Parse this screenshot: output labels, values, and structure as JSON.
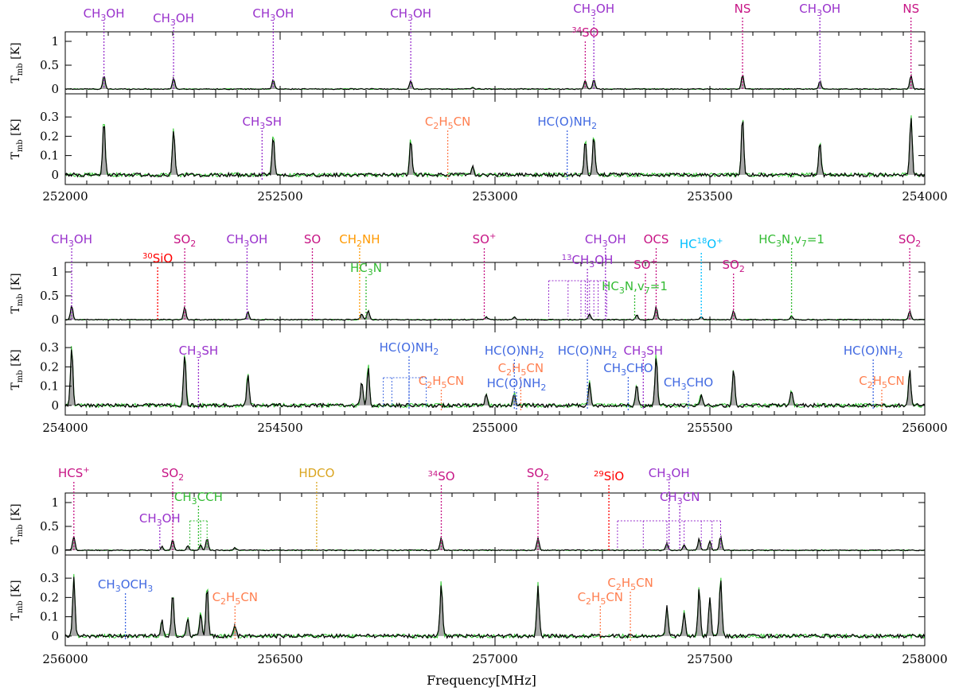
{
  "chart_data": {
    "type": "line",
    "xlabel": "Frequency[MHz]",
    "ylabel": "T_mb [K]",
    "series_styles": {
      "observed": {
        "color": "#000000",
        "fill": "#a9a9a9"
      },
      "model": {
        "color": "#33cc33"
      }
    },
    "colors": {
      "CH3OH": "#9932cc",
      "CH3SH": "#9932cc",
      "NS": "#c71585",
      "SO": "#c71585",
      "34SO": "#c71585",
      "SO2": "#c71585",
      "SO+": "#c71585",
      "OCS": "#c71585",
      "HCS+": "#c71585",
      "SiO": "#ff0000",
      "CH2NH": "#ff9900",
      "HDCO": "#daa520",
      "HC3N": "#33bb33",
      "CH3CCH": "#33bb33",
      "C2H5CN": "#ff7f50",
      "HC(O)NH2": "#4169e1",
      "CH3CHO": "#4169e1",
      "CH3OCH3": "#4169e1",
      "HC18O+": "#00bfff"
    },
    "rows": [
      {
        "xlim": [
          252000,
          254000
        ],
        "xticks": [
          "252000",
          "252500",
          "253000",
          "253500",
          "254000"
        ],
        "top_yticks": [
          "0",
          "0.5",
          "1"
        ],
        "top_ylim": [
          -0.1,
          1.2
        ],
        "bottom_yticks": [
          "0",
          "0.1",
          "0.2",
          "0.3"
        ],
        "bottom_ylim": [
          -0.05,
          0.42
        ],
        "peaks": [
          {
            "x": 252090,
            "h": 0.28
          },
          {
            "x": 252252,
            "h": 0.24
          },
          {
            "x": 252484,
            "h": 0.2
          },
          {
            "x": 252804,
            "h": 0.18
          },
          {
            "x": 252948,
            "h": 0.04
          },
          {
            "x": 253210,
            "h": 0.18
          },
          {
            "x": 253230,
            "h": 0.2
          },
          {
            "x": 253576,
            "h": 0.3
          },
          {
            "x": 253756,
            "h": 0.17
          },
          {
            "x": 253968,
            "h": 0.3
          }
        ],
        "top_labels": [
          {
            "text": "CH3OH",
            "html": "CH<tspan font-size='11' dy='4'>3</tspan><tspan dy='-4'>OH</tspan>",
            "x": 252090,
            "color": "#9932cc",
            "ty": 22
          },
          {
            "text": "CH3OH",
            "html": "CH<tspan font-size='11' dy='4'>3</tspan><tspan dy='-4'>OH</tspan>",
            "x": 252252,
            "color": "#9932cc",
            "ty": 28
          },
          {
            "text": "CH3OH",
            "html": "CH<tspan font-size='11' dy='4'>3</tspan><tspan dy='-4'>OH</tspan>",
            "x": 252484,
            "color": "#9932cc",
            "ty": 22
          },
          {
            "text": "CH3OH",
            "html": "CH<tspan font-size='11' dy='4'>3</tspan><tspan dy='-4'>OH</tspan>",
            "x": 252804,
            "color": "#9932cc",
            "ty": 22
          },
          {
            "text": "CH3OH",
            "html": "CH<tspan font-size='11' dy='4'>3</tspan><tspan dy='-4'>OH</tspan>",
            "x": 253230,
            "color": "#9932cc",
            "ty": 16
          },
          {
            "text": "34SO",
            "html": "<tspan font-size='10' dy='-5'>34</tspan><tspan dy='5'>SO</tspan>",
            "x": 253210,
            "color": "#c71585",
            "ty": 46
          },
          {
            "text": "NS",
            "html": "NS",
            "x": 253576,
            "color": "#c71585",
            "ty": 16
          },
          {
            "text": "CH3OH",
            "html": "CH<tspan font-size='11' dy='4'>3</tspan><tspan dy='-4'>OH</tspan>",
            "x": 253756,
            "color": "#9932cc",
            "ty": 16
          },
          {
            "text": "NS",
            "html": "NS",
            "x": 253968,
            "color": "#c71585",
            "ty": 16
          }
        ],
        "bottom_labels": [
          {
            "text": "CH3SH",
            "html": "CH<tspan font-size='11' dy='4'>3</tspan><tspan dy='-4'>SH</tspan>",
            "x": 252458,
            "color": "#9932cc",
            "ty": 158
          },
          {
            "text": "C2H5CN",
            "html": "C<tspan font-size='11' dy='4'>2</tspan><tspan dy='-4'>H</tspan><tspan font-size='11' dy='4'>5</tspan><tspan dy='-4'>CN</tspan>",
            "x": 252890,
            "color": "#ff7f50",
            "ty": 158
          },
          {
            "text": "HC(O)NH2",
            "html": "HC(O)NH<tspan font-size='11' dy='4'>2</tspan>",
            "x": 253168,
            "color": "#4169e1",
            "ty": 158
          }
        ]
      },
      {
        "xlim": [
          254000,
          256000
        ],
        "xticks": [
          "254000",
          "254500",
          "255000",
          "255500",
          "256000"
        ],
        "top_yticks": [
          "0",
          "0.5",
          "1"
        ],
        "top_ylim": [
          -0.1,
          1.2
        ],
        "bottom_yticks": [
          "0",
          "0.1",
          "0.2",
          "0.3"
        ],
        "bottom_ylim": [
          -0.05,
          0.42
        ],
        "peaks": [
          {
            "x": 254015,
            "h": 0.3
          },
          {
            "x": 254278,
            "h": 0.27
          },
          {
            "x": 254425,
            "h": 0.16
          },
          {
            "x": 254690,
            "h": 0.12
          },
          {
            "x": 254705,
            "h": 0.2
          },
          {
            "x": 254980,
            "h": 0.06
          },
          {
            "x": 255045,
            "h": 0.06
          },
          {
            "x": 255220,
            "h": 0.12
          },
          {
            "x": 255330,
            "h": 0.1
          },
          {
            "x": 255375,
            "h": 0.26
          },
          {
            "x": 255480,
            "h": 0.06
          },
          {
            "x": 255555,
            "h": 0.19
          },
          {
            "x": 255690,
            "h": 0.08
          },
          {
            "x": 255965,
            "h": 0.18
          }
        ],
        "top_labels": [
          {
            "text": "CH3OH",
            "html": "CH<tspan font-size='11' dy='4'>3</tspan><tspan dy='-4'>OH</tspan>",
            "x": 254015,
            "color": "#9932cc",
            "ty": 306
          },
          {
            "text": "30SiO",
            "html": "<tspan font-size='10' dy='-5'>30</tspan><tspan dy='5'>SiO</tspan>",
            "x": 254215,
            "color": "#ff0000",
            "ty": 330
          },
          {
            "text": "SO2",
            "html": "SO<tspan font-size='11' dy='4'>2</tspan>",
            "x": 254278,
            "color": "#c71585",
            "ty": 306
          },
          {
            "text": "CH3OH",
            "html": "CH<tspan font-size='11' dy='4'>3</tspan><tspan dy='-4'>OH</tspan>",
            "x": 254423,
            "color": "#9932cc",
            "ty": 306
          },
          {
            "text": "SO",
            "html": "SO",
            "x": 254575,
            "color": "#c71585",
            "ty": 306
          },
          {
            "text": "CH2NH",
            "html": "CH<tspan font-size='11' dy='4'>2</tspan><tspan dy='-4'>NH</tspan>",
            "x": 254685,
            "color": "#ff9900",
            "ty": 306
          },
          {
            "text": "HC3N",
            "html": "HC<tspan font-size='11' dy='4'>3</tspan><tspan dy='-4'>N</tspan>",
            "x": 254700,
            "color": "#33bb33",
            "ty": 342
          },
          {
            "text": "SO+",
            "html": "SO<tspan font-size='10' dy='-6'>+</tspan>",
            "x": 254975,
            "color": "#c71585",
            "ty": 306
          },
          {
            "text": "13CH3OH",
            "html": "<tspan font-size='10' dy='-5'>13</tspan><tspan dy='5'>CH</tspan><tspan font-size='11' dy='4'>3</tspan><tspan dy='-4'>OH</tspan>",
            "x": 255215,
            "color": "#9932cc",
            "ty": 332
          },
          {
            "text": "CH3OH",
            "html": "CH<tspan font-size='11' dy='4'>3</tspan><tspan dy='-4'>OH</tspan>",
            "x": 255257,
            "color": "#9932cc",
            "ty": 306
          },
          {
            "text": "OCS",
            "html": "OCS",
            "x": 255375,
            "color": "#c71585",
            "ty": 306
          },
          {
            "text": "SO+",
            "html": "SO<tspan font-size='10' dy='-6'>+</tspan>",
            "x": 255350,
            "color": "#c71585",
            "ty": 338
          },
          {
            "text": "HC3N,v7=1",
            "html": "HC<tspan font-size='11' dy='4'>3</tspan><tspan dy='-4'>N,v</tspan><tspan font-size='11' dy='4'>7</tspan><tspan dy='-4'>=1</tspan>",
            "x": 255325,
            "color": "#33bb33",
            "ty": 365
          },
          {
            "text": "HC18O+",
            "html": "HC<tspan font-size='10' dy='-6'>18</tspan><tspan dy='6'>O</tspan><tspan font-size='10' dy='-6'>+</tspan>",
            "x": 255480,
            "color": "#00bfff",
            "ty": 312
          },
          {
            "text": "SO2",
            "html": "SO<tspan font-size='11' dy='4'>2</tspan>",
            "x": 255555,
            "color": "#c71585",
            "ty": 338
          },
          {
            "text": "HC3N,v7=1",
            "html": "HC<tspan font-size='11' dy='4'>3</tspan><tspan dy='-4'>N,v</tspan><tspan font-size='11' dy='4'>7</tspan><tspan dy='-4'>=1</tspan>",
            "x": 255690,
            "color": "#33bb33",
            "ty": 306
          },
          {
            "text": "SO2",
            "html": "SO<tspan font-size='11' dy='4'>2</tspan>",
            "x": 255965,
            "color": "#c71585",
            "ty": 306
          }
        ],
        "bottom_labels": [
          {
            "text": "CH3SH",
            "html": "CH<tspan font-size='11' dy='4'>3</tspan><tspan dy='-4'>SH</tspan>",
            "x": 254310,
            "color": "#9932cc",
            "ty": 446
          },
          {
            "text": "HC(O)NH2",
            "html": "HC(O)NH<tspan font-size='11' dy='4'>2</tspan>",
            "x": 254800,
            "color": "#4169e1",
            "ty": 442
          },
          {
            "text": "C2H5CN",
            "html": "C<tspan font-size='11' dy='4'>2</tspan><tspan dy='-4'>H</tspan><tspan font-size='11' dy='4'>5</tspan><tspan dy='-4'>CN</tspan>",
            "x": 255060,
            "color": "#ff7f50",
            "ty": 468
          },
          {
            "text": "C2H5CN",
            "html": "C<tspan font-size='11' dy='4'>2</tspan><tspan dy='-4'>H</tspan><tspan font-size='11' dy='4'>5</tspan><tspan dy='-4'>CN</tspan>",
            "x": 254875,
            "color": "#ff7f50",
            "ty": 484
          },
          {
            "text": "HC(O)NH2",
            "html": "HC(O)NH<tspan font-size='11' dy='4'>2</tspan>",
            "x": 255050,
            "color": "#4169e1",
            "ty": 487
          },
          {
            "text": "HC(O)NH2",
            "html": "HC(O)NH<tspan font-size='11' dy='4'>2</tspan>",
            "x": 255045,
            "color": "#4169e1",
            "ty": 446
          },
          {
            "text": "HC(O)NH2",
            "html": "HC(O)NH<tspan font-size='11' dy='4'>2</tspan>",
            "x": 255215,
            "color": "#4169e1",
            "ty": 446
          },
          {
            "text": "CH3SH",
            "html": "CH<tspan font-size='11' dy='4'>3</tspan><tspan dy='-4'>SH</tspan>",
            "x": 255345,
            "color": "#9932cc",
            "ty": 446
          },
          {
            "text": "CH3CHO",
            "html": "CH<tspan font-size='11' dy='4'>3</tspan><tspan dy='-4'>CHO</tspan>",
            "x": 255310,
            "color": "#4169e1",
            "ty": 468
          },
          {
            "text": "CH3CHO",
            "html": "CH<tspan font-size='11' dy='4'>3</tspan><tspan dy='-4'>CHO</tspan>",
            "x": 255450,
            "color": "#4169e1",
            "ty": 486
          },
          {
            "text": "HC(O)NH2",
            "html": "HC(O)NH<tspan font-size='11' dy='4'>2</tspan>",
            "x": 255880,
            "color": "#4169e1",
            "ty": 446
          },
          {
            "text": "C2H5CN",
            "html": "C<tspan font-size='11' dy='4'>2</tspan><tspan dy='-4'>H</tspan><tspan font-size='11' dy='4'>5</tspan><tspan dy='-4'>CN</tspan>",
            "x": 255900,
            "color": "#ff7f50",
            "ty": 484
          }
        ]
      },
      {
        "xlim": [
          256000,
          258000
        ],
        "xticks": [
          "256000",
          "256500",
          "257000",
          "257500",
          "258000"
        ],
        "top_yticks": [
          "0",
          "0.5",
          "1"
        ],
        "top_ylim": [
          -0.1,
          1.2
        ],
        "bottom_yticks": [
          "0",
          "0.1",
          "0.2",
          "0.3"
        ],
        "bottom_ylim": [
          -0.05,
          0.42
        ],
        "peaks": [
          {
            "x": 256020,
            "h": 0.3
          },
          {
            "x": 256225,
            "h": 0.08
          },
          {
            "x": 256250,
            "h": 0.22
          },
          {
            "x": 256285,
            "h": 0.1
          },
          {
            "x": 256315,
            "h": 0.12
          },
          {
            "x": 256330,
            "h": 0.25
          },
          {
            "x": 256395,
            "h": 0.05
          },
          {
            "x": 256875,
            "h": 0.27
          },
          {
            "x": 257100,
            "h": 0.26
          },
          {
            "x": 257400,
            "h": 0.15
          },
          {
            "x": 257440,
            "h": 0.12
          },
          {
            "x": 257475,
            "h": 0.24
          },
          {
            "x": 257500,
            "h": 0.2
          },
          {
            "x": 257525,
            "h": 0.3
          }
        ],
        "top_labels": [
          {
            "text": "HCS+",
            "html": "HCS<tspan font-size='10' dy='-6'>+</tspan>",
            "x": 256020,
            "color": "#c71585",
            "ty": 600
          },
          {
            "text": "SO2",
            "html": "SO<tspan font-size='11' dy='4'>2</tspan>",
            "x": 256250,
            "color": "#c71585",
            "ty": 600
          },
          {
            "text": "CH3OH",
            "html": "CH<tspan font-size='11' dy='4'>3</tspan><tspan dy='-4'>OH</tspan>",
            "x": 256220,
            "color": "#9932cc",
            "ty": 657
          },
          {
            "text": "CH3CCH",
            "html": "CH<tspan font-size='11' dy='4'>3</tspan><tspan dy='-4'>CCH</tspan>",
            "x": 256310,
            "color": "#33bb33",
            "ty": 630
          },
          {
            "text": "HDCO",
            "html": "HDCO",
            "x": 256585,
            "color": "#daa520",
            "ty": 600
          },
          {
            "text": "34SO",
            "html": "<tspan font-size='10' dy='-5'>34</tspan><tspan dy='5'>SO</tspan>",
            "x": 256875,
            "color": "#c71585",
            "ty": 604
          },
          {
            "text": "SO2",
            "html": "SO<tspan font-size='11' dy='4'>2</tspan>",
            "x": 257100,
            "color": "#c71585",
            "ty": 600
          },
          {
            "text": "29SiO",
            "html": "<tspan font-size='10' dy='-5'>29</tspan><tspan dy='5'>SiO</tspan>",
            "x": 257265,
            "color": "#ff0000",
            "ty": 604
          },
          {
            "text": "CH3OH",
            "html": "CH<tspan font-size='11' dy='4'>3</tspan><tspan dy='-4'>OH</tspan>",
            "x": 257405,
            "color": "#9932cc",
            "ty": 600
          },
          {
            "text": "CH3CN",
            "html": "CH<tspan font-size='11' dy='4'>3</tspan><tspan dy='-4'>CN</tspan>",
            "x": 257430,
            "color": "#9932cc",
            "ty": 630
          }
        ],
        "bottom_labels": [
          {
            "text": "CH3OCH3",
            "html": "CH<tspan font-size='11' dy='4'>3</tspan><tspan dy='-4'>OCH</tspan><tspan font-size='11' dy='4'>3</tspan>",
            "x": 256140,
            "color": "#4169e1",
            "ty": 740
          },
          {
            "text": "C2H5CN",
            "html": "C<tspan font-size='11' dy='4'>2</tspan><tspan dy='-4'>H</tspan><tspan font-size='11' dy='4'>5</tspan><tspan dy='-4'>CN</tspan>",
            "x": 256395,
            "color": "#ff7f50",
            "ty": 756
          },
          {
            "text": "C2H5CN",
            "html": "C<tspan font-size='11' dy='4'>2</tspan><tspan dy='-4'>H</tspan><tspan font-size='11' dy='4'>5</tspan><tspan dy='-4'>CN</tspan>",
            "x": 257315,
            "color": "#ff7f50",
            "ty": 738
          },
          {
            "text": "C2H5CN",
            "html": "C<tspan font-size='11' dy='4'>2</tspan><tspan dy='-4'>H</tspan><tspan font-size='11' dy='4'>5</tspan><tspan dy='-4'>CN</tspan>",
            "x": 257245,
            "color": "#ff7f50",
            "ty": 756
          }
        ]
      }
    ]
  }
}
